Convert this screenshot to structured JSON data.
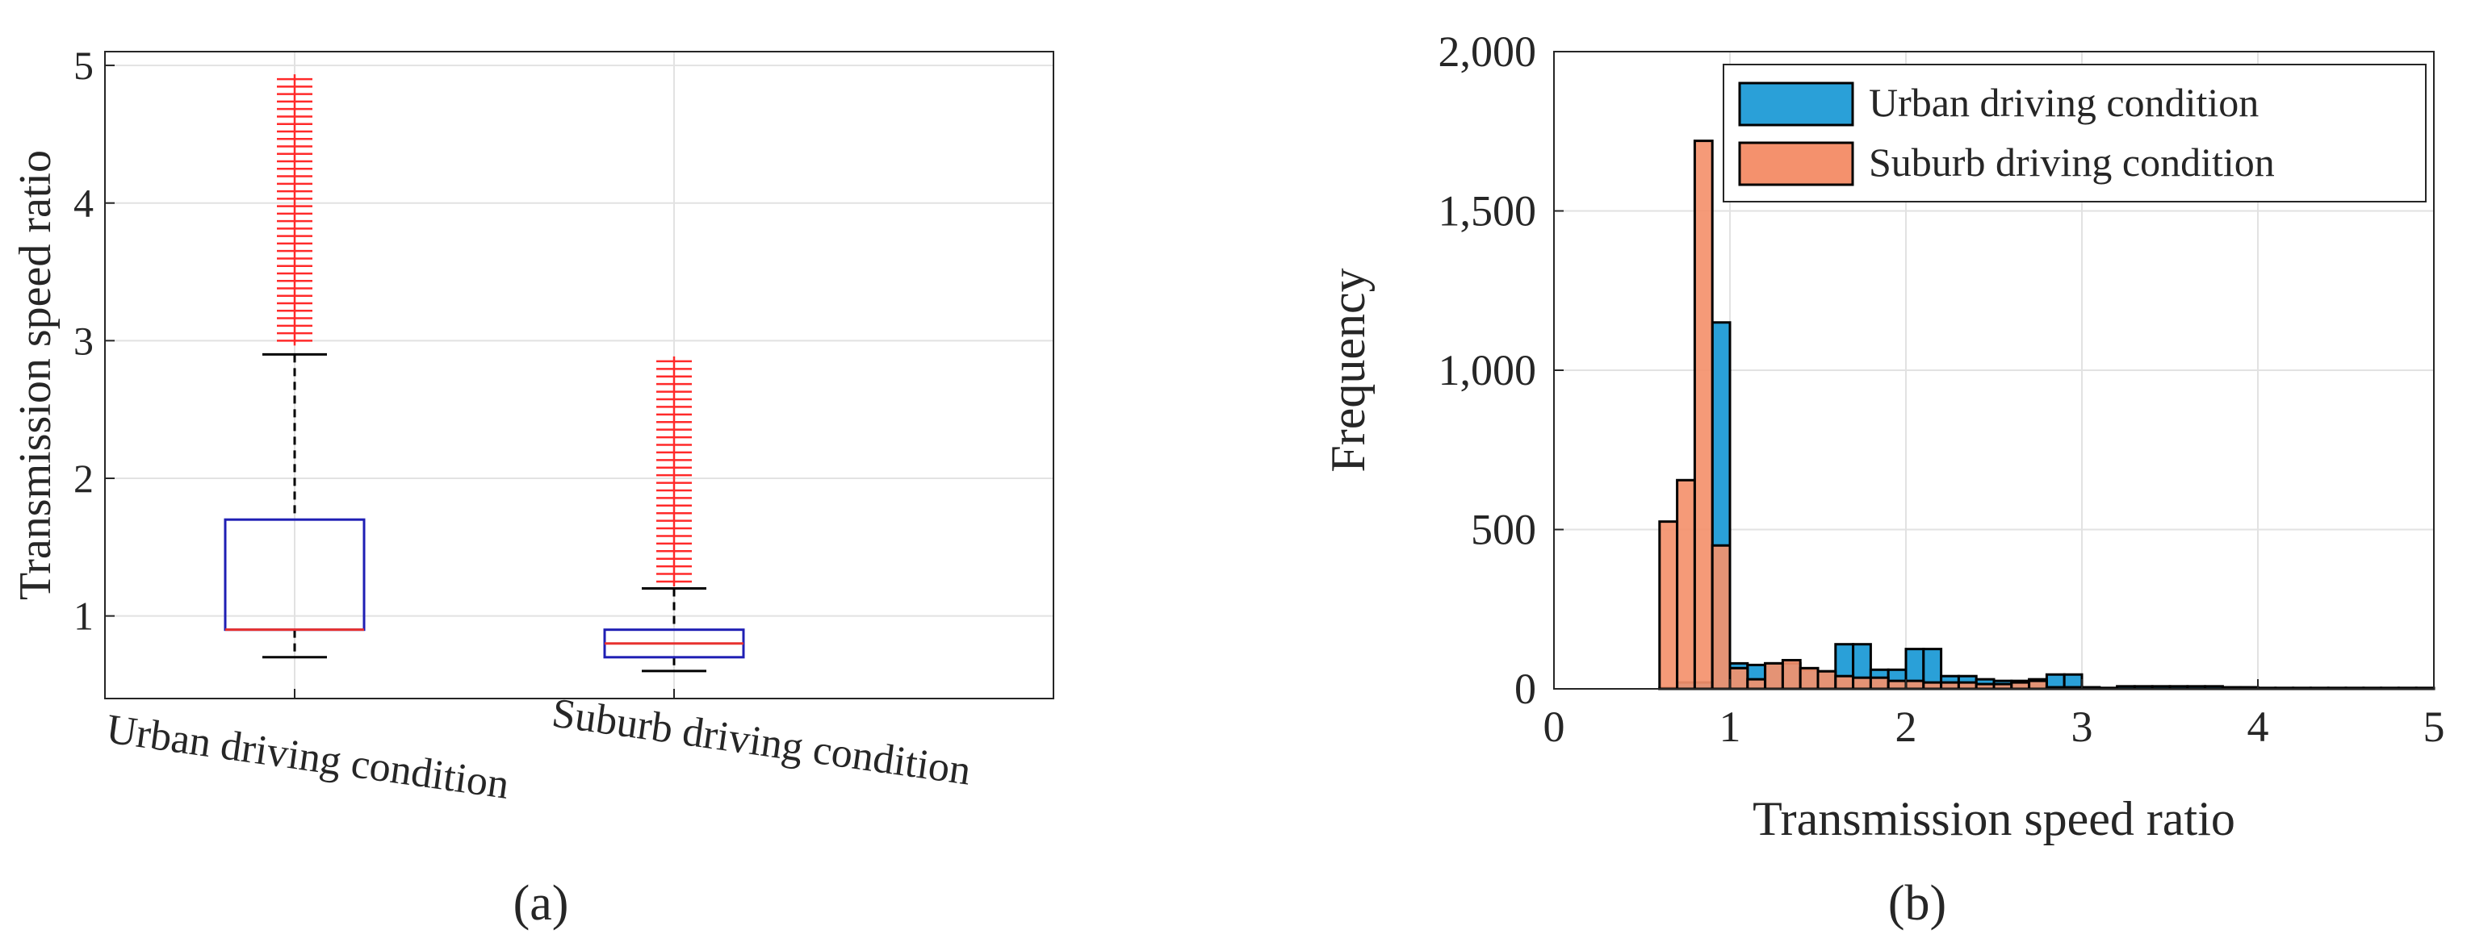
{
  "chart_data": [
    {
      "type": "boxplot",
      "panel_label": "(a)",
      "ylabel": "Transmission speed ratio",
      "ylim": [
        0.4,
        5.1
      ],
      "yticks": [
        1,
        2,
        3,
        4,
        5
      ],
      "categories": [
        "Urban driving condition",
        "Suburb driving condition"
      ],
      "boxes": [
        {
          "name": "Urban driving condition",
          "lower_whisker": 0.7,
          "q1": 0.9,
          "median": 0.9,
          "q3": 1.7,
          "upper_whisker": 2.9,
          "outliers_from": 3.0,
          "outliers_to": 4.9,
          "outlier_count": 36
        },
        {
          "name": "Suburb driving condition",
          "lower_whisker": 0.6,
          "q1": 0.7,
          "median": 0.8,
          "q3": 0.9,
          "upper_whisker": 1.2,
          "outliers_from": 1.25,
          "outliers_to": 2.85,
          "outlier_count": 30
        }
      ],
      "colors": {
        "box": "#1f1fb4",
        "median": "#e8312f",
        "outlier": "#ff2a2a",
        "whisker": "#000000"
      },
      "grid": true
    },
    {
      "type": "histogram",
      "panel_label": "(b)",
      "xlabel": "Transmission speed ratio",
      "ylabel": "Frequency",
      "xlim": [
        0,
        5
      ],
      "ylim": [
        0,
        2000
      ],
      "xticks": [
        "0",
        "1",
        "2",
        "3",
        "4",
        "5"
      ],
      "yticks": [
        "0",
        "500",
        "1,000",
        "1,500",
        "2,000"
      ],
      "bin_width": 0.1,
      "grid": true,
      "legend": {
        "position": "top-right"
      },
      "series": [
        {
          "name": "Urban driving condition",
          "color": "#2aa0d8",
          "bins": [
            [
              0.6,
              3
            ],
            [
              0.7,
              20
            ],
            [
              0.8,
              20
            ],
            [
              0.9,
              1150
            ],
            [
              1.0,
              80
            ],
            [
              1.1,
              75
            ],
            [
              1.2,
              80
            ],
            [
              1.3,
              80
            ],
            [
              1.4,
              60
            ],
            [
              1.5,
              55
            ],
            [
              1.6,
              140
            ],
            [
              1.7,
              140
            ],
            [
              1.8,
              60
            ],
            [
              1.9,
              60
            ],
            [
              2.0,
              125
            ],
            [
              2.1,
              125
            ],
            [
              2.2,
              40
            ],
            [
              2.3,
              40
            ],
            [
              2.4,
              30
            ],
            [
              2.5,
              25
            ],
            [
              2.6,
              25
            ],
            [
              2.7,
              30
            ],
            [
              2.8,
              45
            ],
            [
              2.9,
              45
            ],
            [
              3.0,
              5
            ],
            [
              3.1,
              3
            ],
            [
              3.2,
              8
            ],
            [
              3.3,
              8
            ],
            [
              3.4,
              8
            ],
            [
              3.5,
              8
            ],
            [
              3.6,
              8
            ],
            [
              3.7,
              8
            ],
            [
              3.8,
              5
            ],
            [
              3.9,
              5
            ],
            [
              4.0,
              3
            ],
            [
              4.1,
              3
            ],
            [
              4.2,
              3
            ],
            [
              4.3,
              3
            ],
            [
              4.4,
              3
            ],
            [
              4.5,
              3
            ],
            [
              4.6,
              3
            ],
            [
              4.7,
              3
            ],
            [
              4.8,
              3
            ],
            [
              4.9,
              3
            ]
          ]
        },
        {
          "name": "Suburb driving condition",
          "color": "#f4916d",
          "bins": [
            [
              0.6,
              525
            ],
            [
              0.7,
              655
            ],
            [
              0.8,
              1720
            ],
            [
              0.9,
              450
            ],
            [
              1.0,
              65
            ],
            [
              1.1,
              30
            ],
            [
              1.2,
              80
            ],
            [
              1.3,
              90
            ],
            [
              1.4,
              65
            ],
            [
              1.5,
              55
            ],
            [
              1.6,
              40
            ],
            [
              1.7,
              35
            ],
            [
              1.8,
              35
            ],
            [
              1.9,
              25
            ],
            [
              2.0,
              25
            ],
            [
              2.1,
              20
            ],
            [
              2.2,
              20
            ],
            [
              2.3,
              20
            ],
            [
              2.4,
              15
            ],
            [
              2.5,
              15
            ],
            [
              2.6,
              20
            ],
            [
              2.7,
              25
            ],
            [
              2.8,
              5
            ],
            [
              2.9,
              5
            ]
          ]
        }
      ]
    }
  ]
}
